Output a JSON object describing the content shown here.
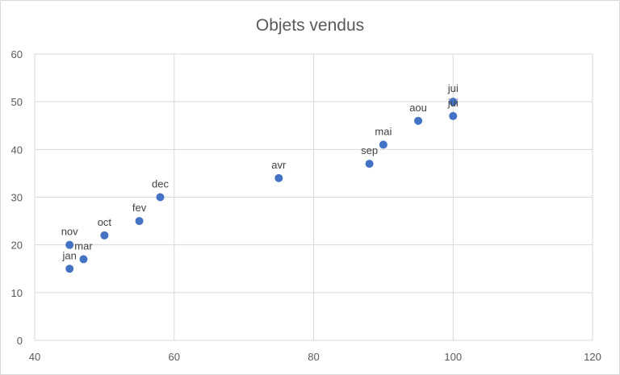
{
  "chart_data": {
    "type": "scatter",
    "title": "Objets vendus",
    "xlabel": "",
    "ylabel": "",
    "xlim": [
      40,
      120
    ],
    "ylim": [
      0,
      60
    ],
    "xticks": [
      40,
      60,
      80,
      100,
      120
    ],
    "yticks": [
      0,
      10,
      20,
      30,
      40,
      50,
      60
    ],
    "grid": true,
    "legend": "none",
    "marker_color": "#4472c4",
    "points": [
      {
        "label": "jan",
        "x": 45,
        "y": 15
      },
      {
        "label": "fev",
        "x": 55,
        "y": 25
      },
      {
        "label": "mar",
        "x": 47,
        "y": 17
      },
      {
        "label": "avr",
        "x": 75,
        "y": 34
      },
      {
        "label": "mai",
        "x": 90,
        "y": 41
      },
      {
        "label": "jui",
        "x": 100,
        "y": 50
      },
      {
        "label": "jui",
        "x": 100,
        "y": 47
      },
      {
        "label": "aou",
        "x": 95,
        "y": 46
      },
      {
        "label": "sep",
        "x": 88,
        "y": 37
      },
      {
        "label": "oct",
        "x": 50,
        "y": 22
      },
      {
        "label": "nov",
        "x": 45,
        "y": 20
      },
      {
        "label": "dec",
        "x": 58,
        "y": 30
      }
    ]
  }
}
